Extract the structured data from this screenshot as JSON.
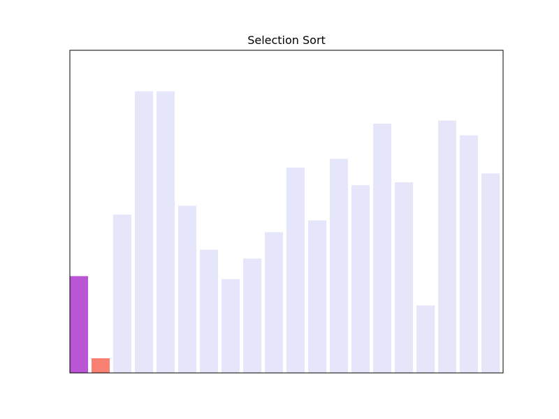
{
  "chart_data": {
    "type": "bar",
    "title": "Selection Sort",
    "xlabel": "",
    "ylabel": "",
    "ylim": [
      0,
      110
    ],
    "grid": false,
    "show_ticks": false,
    "values": [
      33,
      5,
      54,
      96,
      96,
      57,
      42,
      32,
      39,
      48,
      70,
      52,
      73,
      64,
      85,
      65,
      23,
      86,
      81,
      68
    ],
    "highlight": {
      "0": "#ba55d3",
      "1": "#fa8072"
    },
    "default_color": "#e6e6fa"
  }
}
